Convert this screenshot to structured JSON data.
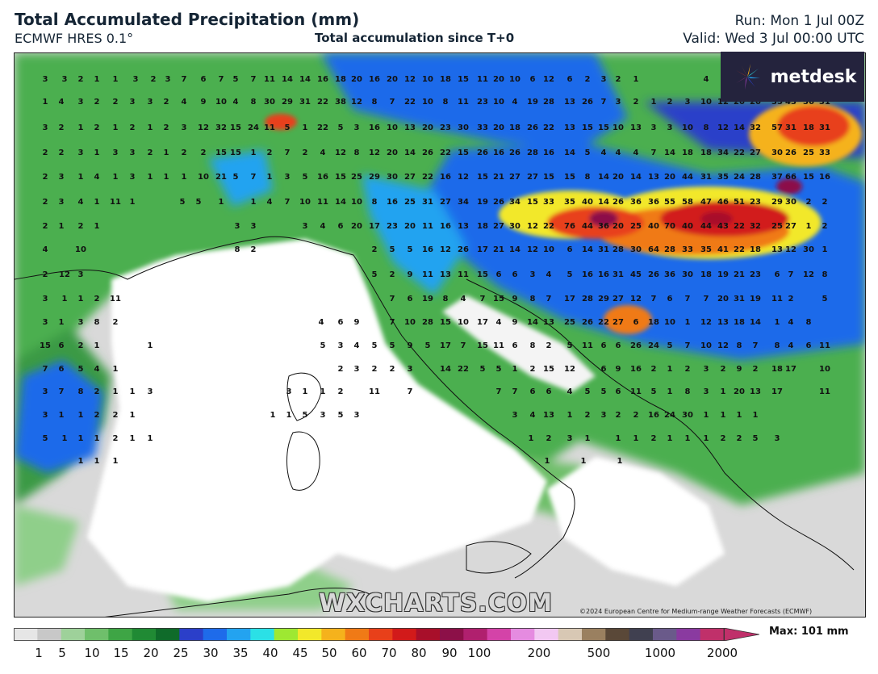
{
  "header": {
    "title": "Total Accumulated Precipitation (mm)",
    "model": "ECMWF HRES 0.1°",
    "subtitle": "Total accumulation since T+0",
    "run": "Run: Mon 1 Jul 00Z",
    "valid": "Valid: Wed 3 Jul 00:00 UTC"
  },
  "branding": {
    "logo_text": "metdesk",
    "watermark": "WXCHARTS.COM",
    "copyright": "©2024 European Centre for Medium-range Weather Forecasts (ECMWF)"
  },
  "legend": {
    "max_label": "Max: 101 mm",
    "ticks": [
      "1",
      "5",
      "10",
      "15",
      "20",
      "25",
      "30",
      "35",
      "40",
      "45",
      "50",
      "60",
      "70",
      "80",
      "90",
      "100",
      "200",
      "500",
      "1000",
      "2000"
    ],
    "colors": [
      "#e6e6e6",
      "#c8c8c8",
      "#9ed19a",
      "#6fbf6b",
      "#3ea545",
      "#208a34",
      "#0f6b2a",
      "#2b3fc9",
      "#1e6bea",
      "#23a3f0",
      "#2be0e6",
      "#9ee832",
      "#f2e82a",
      "#f5b21c",
      "#f07a16",
      "#e8401a",
      "#d21a1a",
      "#a80f2a",
      "#8c1048",
      "#b0206e",
      "#d443a8",
      "#e58be0",
      "#f2c8f2",
      "#d8c8b4",
      "#9a8060",
      "#5a4838",
      "#404050",
      "#6a5a8a",
      "#8a3aa0",
      "#c0306a"
    ],
    "accent_green": "#3ea545",
    "accent_blue": "#1e6bea",
    "accent_red": "#d21a1a",
    "accent_purple": "#8c1048"
  },
  "map_values": [
    "3",
    "3",
    "2",
    "1",
    "1",
    "3",
    "2",
    "3",
    "7",
    "6",
    "7",
    "5",
    "7",
    "11",
    "14",
    "14",
    "16",
    "18",
    "20",
    "16",
    "20",
    "12",
    "10",
    "18",
    "15",
    "11",
    "20",
    "10",
    "6",
    "12",
    "6",
    "2",
    "3",
    "2",
    "1",
    "4",
    "1",
    "4",
    "3",
    "2",
    "2",
    "3",
    "3",
    "2",
    "4",
    "9",
    "10",
    "4",
    "8",
    "30",
    "29",
    "31",
    "22",
    "38",
    "12",
    "8",
    "7",
    "22",
    "10",
    "8",
    "11",
    "23",
    "10",
    "4",
    "19",
    "28",
    "13",
    "26",
    "7",
    "3",
    "2",
    "1",
    "2",
    "3",
    "10",
    "12",
    "20",
    "20",
    "35",
    "43",
    "36",
    "31",
    "3",
    "2",
    "1",
    "2",
    "1",
    "2",
    "1",
    "2",
    "3",
    "12",
    "32",
    "15",
    "24",
    "11",
    "5",
    "1",
    "22",
    "5",
    "3",
    "16",
    "10",
    "13",
    "20",
    "23",
    "30",
    "33",
    "20",
    "18",
    "26",
    "22",
    "13",
    "15",
    "15",
    "10",
    "13",
    "3",
    "3",
    "10",
    "8",
    "12",
    "14",
    "32",
    "57",
    "31",
    "18",
    "31",
    "2",
    "2",
    "3",
    "1",
    "3",
    "3",
    "2",
    "1",
    "2",
    "2",
    "15",
    "15",
    "1",
    "2",
    "7",
    "2",
    "4",
    "12",
    "8",
    "12",
    "20",
    "14",
    "26",
    "22",
    "15",
    "26",
    "16",
    "26",
    "28",
    "16",
    "14",
    "5",
    "4",
    "4",
    "4",
    "7",
    "14",
    "18",
    "18",
    "34",
    "22",
    "27",
    "30",
    "26",
    "25",
    "33",
    "2",
    "3",
    "1",
    "4",
    "1",
    "3",
    "1",
    "1",
    "1",
    "10",
    "21",
    "5",
    "7",
    "1",
    "3",
    "5",
    "16",
    "15",
    "25",
    "29",
    "30",
    "27",
    "22",
    "16",
    "12",
    "15",
    "21",
    "27",
    "27",
    "15",
    "15",
    "8",
    "14",
    "20",
    "14",
    "13",
    "20",
    "44",
    "31",
    "35",
    "24",
    "28",
    "37",
    "66",
    "15",
    "16",
    "2",
    "3",
    "4",
    "1",
    "11",
    "1",
    "5",
    "5",
    "1",
    "1",
    "4",
    "7",
    "10",
    "11",
    "14",
    "10",
    "8",
    "16",
    "25",
    "31",
    "27",
    "34",
    "19",
    "26",
    "34",
    "15",
    "33",
    "35",
    "40",
    "14",
    "26",
    "36",
    "36",
    "55",
    "58",
    "47",
    "46",
    "51",
    "23",
    "29",
    "30",
    "2",
    "2",
    "2",
    "1",
    "2",
    "1",
    "3",
    "3",
    "3",
    "4",
    "6",
    "20",
    "17",
    "23",
    "20",
    "11",
    "16",
    "13",
    "18",
    "27",
    "30",
    "12",
    "22",
    "76",
    "44",
    "36",
    "20",
    "25",
    "40",
    "70",
    "40",
    "44",
    "43",
    "22",
    "32",
    "25",
    "27",
    "1",
    "2",
    "4",
    "10",
    "8",
    "2",
    "2",
    "5",
    "5",
    "16",
    "12",
    "26",
    "17",
    "21",
    "14",
    "12",
    "10",
    "6",
    "14",
    "31",
    "28",
    "30",
    "64",
    "28",
    "33",
    "35",
    "41",
    "22",
    "18",
    "13",
    "12",
    "30",
    "1",
    "2",
    "12",
    "3",
    "5",
    "2",
    "9",
    "11",
    "13",
    "11",
    "15",
    "6",
    "6",
    "3",
    "4",
    "5",
    "16",
    "16",
    "31",
    "45",
    "26",
    "36",
    "30",
    "18",
    "19",
    "21",
    "23",
    "6",
    "7",
    "12",
    "8",
    "3",
    "1",
    "1",
    "2",
    "11",
    "7",
    "6",
    "19",
    "8",
    "4",
    "7",
    "15",
    "9",
    "8",
    "7",
    "17",
    "28",
    "29",
    "27",
    "12",
    "7",
    "6",
    "7",
    "7",
    "20",
    "31",
    "19",
    "11",
    "2",
    "5",
    "3",
    "1",
    "3",
    "8",
    "2",
    "4",
    "6",
    "9",
    "7",
    "10",
    "28",
    "15",
    "10",
    "17",
    "4",
    "9",
    "14",
    "13",
    "25",
    "26",
    "22",
    "27",
    "6",
    "18",
    "10",
    "1",
    "12",
    "13",
    "18",
    "14",
    "1",
    "4",
    "8",
    "15",
    "6",
    "2",
    "1",
    "1",
    "5",
    "3",
    "4",
    "5",
    "5",
    "9",
    "5",
    "17",
    "7",
    "15",
    "11",
    "6",
    "8",
    "2",
    "5",
    "11",
    "6",
    "6",
    "26",
    "24",
    "5",
    "7",
    "10",
    "12",
    "8",
    "7",
    "8",
    "4",
    "6",
    "11",
    "7",
    "6",
    "5",
    "4",
    "1",
    "2",
    "3",
    "2",
    "2",
    "3",
    "14",
    "22",
    "5",
    "5",
    "1",
    "2",
    "15",
    "12",
    "6",
    "9",
    "16",
    "2",
    "1",
    "2",
    "3",
    "2",
    "9",
    "2",
    "18",
    "17",
    "10",
    "3",
    "7",
    "8",
    "2",
    "1",
    "1",
    "3",
    "3",
    "1",
    "1",
    "2",
    "11",
    "7",
    "7",
    "7",
    "6",
    "6",
    "4",
    "5",
    "5",
    "6",
    "11",
    "5",
    "1",
    "8",
    "3",
    "1",
    "20",
    "13",
    "17",
    "11",
    "3",
    "1",
    "1",
    "2",
    "2",
    "1",
    "1",
    "1",
    "5",
    "3",
    "5",
    "3",
    "3",
    "4",
    "13",
    "1",
    "2",
    "3",
    "2",
    "2",
    "16",
    "24",
    "30",
    "1",
    "1",
    "1",
    "1",
    "5",
    "1",
    "1",
    "1",
    "2",
    "1",
    "1",
    "1",
    "2",
    "3",
    "1",
    "1",
    "1",
    "2",
    "1",
    "1",
    "1",
    "2",
    "2",
    "5",
    "3",
    "1",
    "1",
    "1",
    "1",
    "1",
    "1"
  ]
}
